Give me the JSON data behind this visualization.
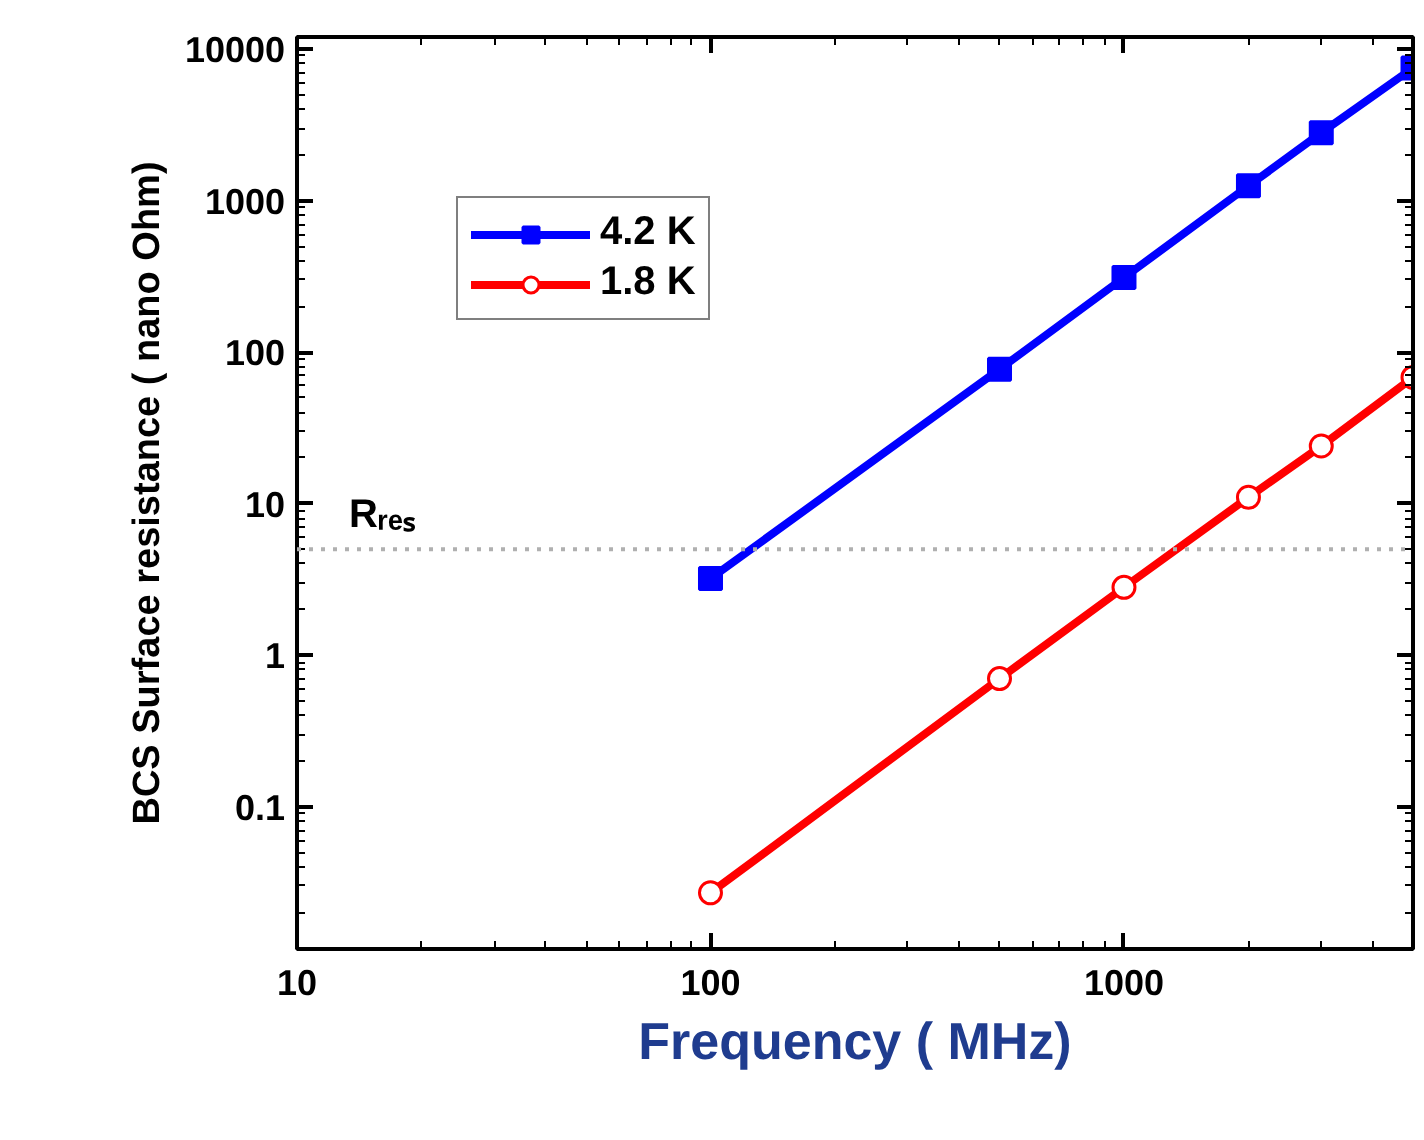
{
  "chart_data": {
    "type": "line",
    "xlabel": "Frequency ( MHz)",
    "ylabel": "BCS Surface resistance ( nano Ohm)",
    "x": [
      100,
      500,
      1000,
      2000,
      3000,
      5000
    ],
    "series": [
      {
        "name": "4.2 K",
        "color": "#0000ff",
        "marker": "square",
        "values": [
          3.2,
          77,
          310,
          1250,
          2800,
          7500
        ]
      },
      {
        "name": "1.8 K",
        "color": "#ff0000",
        "marker": "circle",
        "values": [
          0.027,
          0.7,
          2.8,
          11,
          24,
          68
        ]
      }
    ],
    "log": "xy",
    "xlim": [
      10,
      5000
    ],
    "ylim": [
      0.0115,
      12000
    ],
    "xticks": [
      10,
      100,
      1000
    ],
    "yticks": [
      0.1,
      1,
      10,
      100,
      1000,
      10000
    ],
    "ref_lines": [
      {
        "axis": "y",
        "value": 5,
        "label": "Rᵣₑₛ",
        "color": "#b0b0b0",
        "line_style": "dotted"
      }
    ],
    "legend": "top left",
    "grid": false,
    "line_style": "solid"
  }
}
